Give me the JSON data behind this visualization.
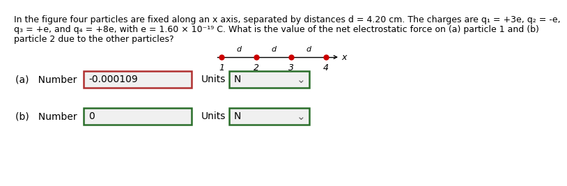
{
  "background_color": "#ffffff",
  "text_color": "#000000",
  "line1": "In the figure four particles are fixed along an x axis, separated by distances d = 4.20 cm. The charges are q₁ = +3e, q₂ = -e,",
  "line2": "q₃ = +e, and q₄ = +8e, with e = 1.60 × 10⁻¹⁹ C. What is the value of the net electrostatic force on (a) particle 1 and (b)",
  "line3": "particle 2 due to the other particles?",
  "particle_labels": [
    "1",
    "2",
    "3",
    "4"
  ],
  "d_labels": [
    "d",
    "d",
    "d"
  ],
  "axis_label": "x",
  "dot_color": "#cc0000",
  "line_color": "#000000",
  "part_a_value": "-0.000109",
  "part_a_units_value": "N",
  "part_b_value": "0",
  "part_b_units_value": "N",
  "box_a_edge_color": "#b03030",
  "box_b_edge_color": "#2a6e2a",
  "units_box_color": "#2a6e2a",
  "box_fill_color": "#f0f0f0",
  "font_size_para": 9.0,
  "font_size_labels": 10,
  "font_size_diagram": 9
}
